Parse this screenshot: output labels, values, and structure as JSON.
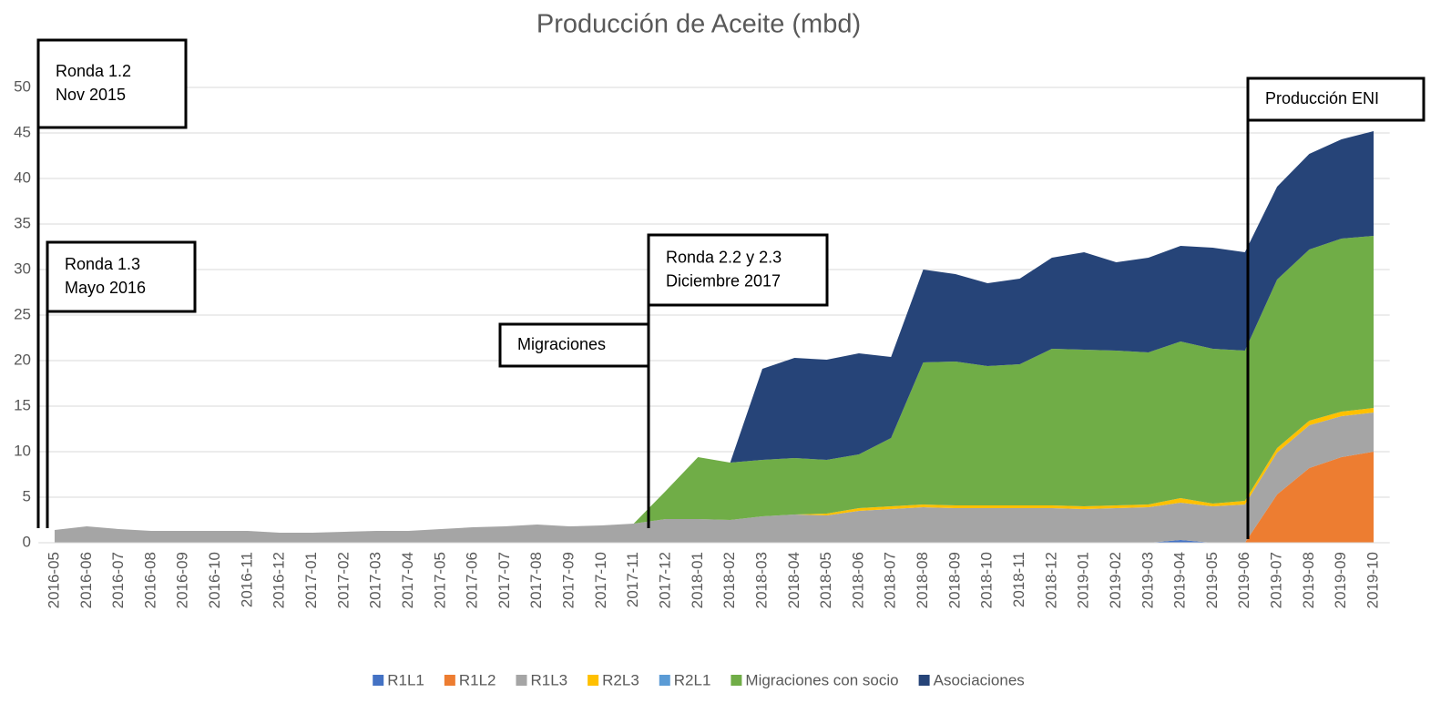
{
  "chart_data": {
    "type": "stacked_area",
    "title": "Producción de Aceite (mbd)",
    "categories": [
      "2016-05",
      "2016-06",
      "2016-07",
      "2016-08",
      "2016-09",
      "2016-10",
      "2016-11",
      "2016-12",
      "2017-01",
      "2017-02",
      "2017-03",
      "2017-04",
      "2017-05",
      "2017-06",
      "2017-07",
      "2017-08",
      "2017-09",
      "2017-10",
      "2017-11",
      "2017-12",
      "2018-01",
      "2018-02",
      "2018-03",
      "2018-04",
      "2018-05",
      "2018-06",
      "2018-07",
      "2018-08",
      "2018-09",
      "2018-10",
      "2018-11",
      "2018-12",
      "2019-01",
      "2019-02",
      "2019-03",
      "2019-04",
      "2019-05",
      "2019-06",
      "2019-07",
      "2019-08",
      "2019-09",
      "2019-10"
    ],
    "series": [
      {
        "name": "R1L1",
        "color": "#4472c4",
        "values": [
          0,
          0,
          0,
          0,
          0,
          0,
          0,
          0,
          0,
          0,
          0,
          0,
          0,
          0,
          0,
          0,
          0,
          0,
          0,
          0,
          0,
          0,
          0,
          0,
          0,
          0,
          0,
          0,
          0,
          0,
          0,
          0,
          0,
          0,
          0,
          0.3,
          0,
          0,
          0,
          0,
          0,
          0
        ]
      },
      {
        "name": "R1L2",
        "color": "#ed7d31",
        "values": [
          0,
          0,
          0,
          0,
          0,
          0,
          0,
          0,
          0,
          0,
          0,
          0,
          0,
          0,
          0,
          0,
          0,
          0,
          0,
          0,
          0,
          0,
          0,
          0,
          0,
          0,
          0,
          0,
          0,
          0,
          0,
          0,
          0,
          0,
          0,
          0,
          0,
          0,
          5.3,
          8.2,
          9.4,
          10.0
        ]
      },
      {
        "name": "R1L3",
        "color": "#a5a5a5",
        "values": [
          1.4,
          1.8,
          1.5,
          1.3,
          1.3,
          1.3,
          1.3,
          1.1,
          1.1,
          1.2,
          1.3,
          1.3,
          1.5,
          1.7,
          1.8,
          2.0,
          1.8,
          1.9,
          2.1,
          2.6,
          2.6,
          2.5,
          2.9,
          3.1,
          3.0,
          3.5,
          3.7,
          3.9,
          3.8,
          3.8,
          3.8,
          3.8,
          3.7,
          3.8,
          3.9,
          4.1,
          4.0,
          4.2,
          4.6,
          4.7,
          4.5,
          4.3
        ]
      },
      {
        "name": "R2L3",
        "color": "#ffc000",
        "values": [
          0,
          0,
          0,
          0,
          0,
          0,
          0,
          0,
          0,
          0,
          0,
          0,
          0,
          0,
          0,
          0,
          0,
          0,
          0,
          0,
          0,
          0,
          0,
          0,
          0.2,
          0.3,
          0.3,
          0.3,
          0.3,
          0.3,
          0.3,
          0.3,
          0.3,
          0.3,
          0.3,
          0.5,
          0.3,
          0.4,
          0.5,
          0.5,
          0.5,
          0.5
        ]
      },
      {
        "name": "R2L1",
        "color": "#5b9bd5",
        "values": [
          0,
          0,
          0,
          0,
          0,
          0,
          0,
          0,
          0,
          0,
          0,
          0,
          0,
          0,
          0,
          0,
          0,
          0,
          0,
          0,
          0,
          0,
          0,
          0,
          0,
          0,
          0,
          0,
          0,
          0,
          0,
          0,
          0,
          0,
          0,
          0,
          0,
          0,
          0,
          0,
          0,
          0
        ]
      },
      {
        "name": "Migraciones con socio",
        "color": "#70ad47",
        "values": [
          0,
          0,
          0,
          0,
          0,
          0,
          0,
          0,
          0,
          0,
          0,
          0,
          0,
          0,
          0,
          0,
          0,
          0,
          0,
          3.1,
          6.8,
          6.3,
          6.2,
          6.2,
          5.9,
          5.9,
          7.5,
          15.6,
          15.8,
          15.3,
          15.5,
          17.2,
          17.2,
          17.0,
          16.7,
          17.2,
          17.0,
          16.5,
          18.5,
          18.8,
          19.0,
          18.9
        ]
      },
      {
        "name": "Asociaciones",
        "color": "#264478",
        "values": [
          0,
          0,
          0,
          0,
          0,
          0,
          0,
          0,
          0,
          0,
          0,
          0,
          0,
          0,
          0,
          0,
          0,
          0,
          0,
          0,
          0,
          0,
          10.0,
          11.0,
          11.0,
          11.1,
          8.9,
          10.2,
          9.6,
          9.1,
          9.4,
          10.0,
          10.7,
          9.7,
          10.4,
          10.5,
          11.1,
          10.8,
          10.2,
          10.5,
          10.9,
          11.5
        ]
      }
    ],
    "ylim": [
      0,
      50
    ],
    "yticks": [
      0,
      5,
      10,
      15,
      20,
      25,
      30,
      35,
      40,
      45,
      50
    ],
    "grid": true,
    "annotations": [
      {
        "lines": [
          "Ronda 1.2",
          "Nov 2015"
        ]
      },
      {
        "lines": [
          "Ronda 1.3",
          "Mayo 2016"
        ]
      },
      {
        "lines": [
          "Migraciones"
        ]
      },
      {
        "lines": [
          "Ronda 2.2 y 2.3",
          "Diciembre 2017"
        ]
      },
      {
        "lines": [
          "Producción ENI"
        ]
      }
    ]
  }
}
